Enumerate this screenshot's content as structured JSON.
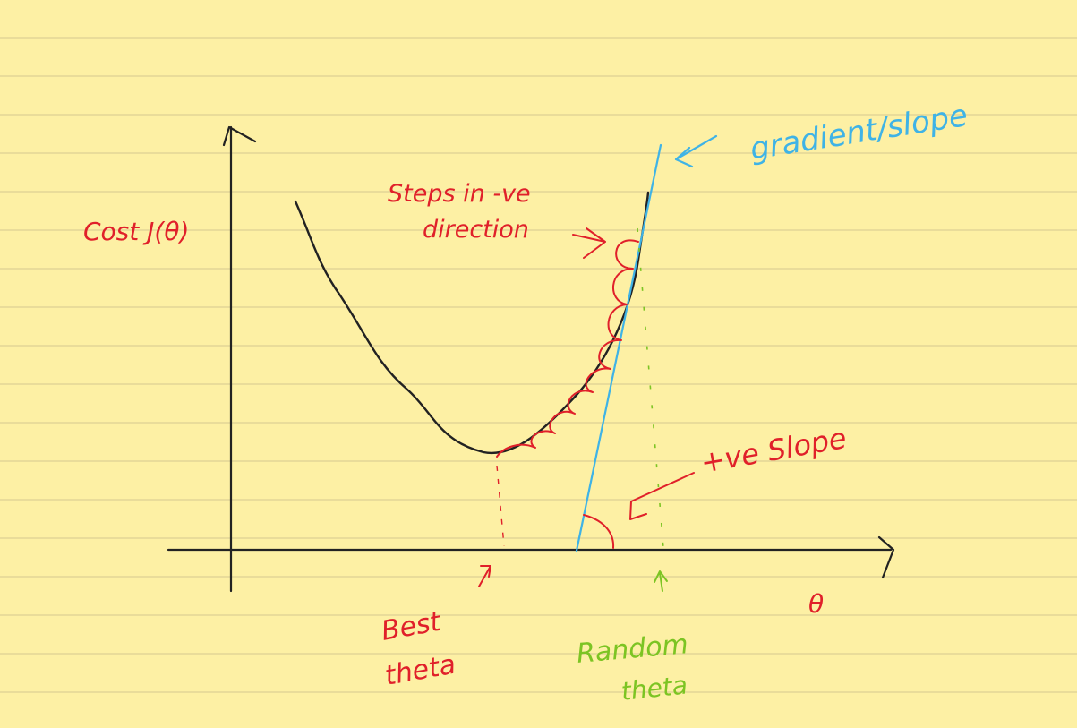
{
  "colors": {
    "paper": "#fdf0a4",
    "ruling": "#e9dc9a",
    "ink": "#222222",
    "red": "#e0202a",
    "blue": "#3fb3e6",
    "green": "#7cc423"
  },
  "labels": {
    "y_axis": "Cost J(θ)",
    "x_axis": "θ",
    "steps_line1": "Steps in -ve",
    "steps_line2": "direction",
    "gradient": "gradient/slope",
    "positive_slope": "+ve Slope",
    "best_line1": "Best",
    "best_line2": "theta",
    "random_line1": "Random",
    "random_line2": "theta"
  }
}
